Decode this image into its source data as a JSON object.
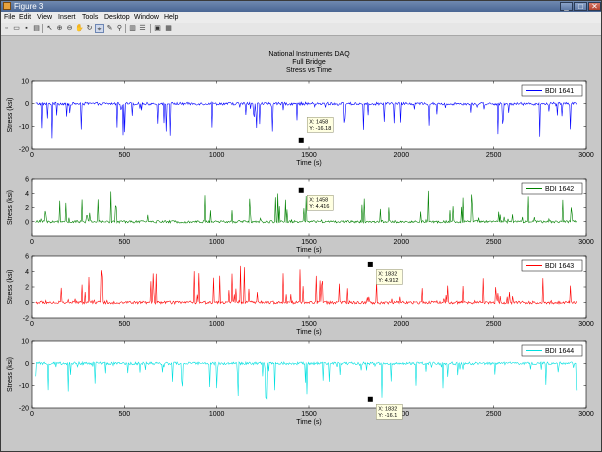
{
  "window": {
    "title": "Figure 3",
    "controls": {
      "minimize": "_",
      "maximize": "□",
      "close": "✕"
    }
  },
  "menu": [
    "File",
    "Edit",
    "View",
    "Insert",
    "Tools",
    "Desktop",
    "Window",
    "Help"
  ],
  "toolbar": {
    "icons": [
      "new-figure-icon",
      "open-file-icon",
      "save-icon",
      "print-icon",
      "select-arrow-icon",
      "zoom-in-icon",
      "zoom-out-icon",
      "pan-icon",
      "rotate-icon",
      "data-cursor-icon",
      "brush-icon",
      "link-icon",
      "colorbar-icon",
      "legend-icon",
      "hide-plot-tools-icon",
      "show-plot-tools-icon"
    ]
  },
  "figure": {
    "title_lines": [
      "National Instruments DAQ",
      "Full Bridge",
      "Stress vs Time"
    ]
  },
  "chart_data": [
    {
      "type": "line",
      "series": [
        {
          "name": "BDI 1641",
          "color": "#0000ff",
          "baseline": 0,
          "direction": "negative",
          "spike_max": 16
        }
      ],
      "xlabel": "Time (s)",
      "ylabel": "Stress (ksi)",
      "xlim": [
        0,
        3000
      ],
      "ylim": [
        -20,
        10
      ],
      "xticks": [
        0,
        500,
        1000,
        1500,
        2000,
        2500,
        3000
      ],
      "yticks": [
        -20,
        -10,
        0,
        10
      ],
      "legend_position": "top-right",
      "datatip": {
        "x": 1458,
        "y": -16.18,
        "label_x": "X: 1458",
        "label_y": "Y: -16.18"
      }
    },
    {
      "type": "line",
      "series": [
        {
          "name": "BDI 1642",
          "color": "#008000",
          "baseline": 0,
          "direction": "positive",
          "spike_max": 4.4
        }
      ],
      "xlabel": "Time (s)",
      "ylabel": "Stress (ksi)",
      "xlim": [
        0,
        3000
      ],
      "ylim": [
        -2,
        6
      ],
      "xticks": [
        0,
        500,
        1000,
        1500,
        2000,
        2500,
        3000
      ],
      "yticks": [
        0,
        2,
        4,
        6
      ],
      "legend_position": "top-right",
      "datatip": {
        "x": 1458,
        "y": 4.416,
        "label_x": "X: 1458",
        "label_y": "Y: 4.416"
      }
    },
    {
      "type": "line",
      "series": [
        {
          "name": "BDI 1643",
          "color": "#ff0000",
          "baseline": 0,
          "direction": "positive",
          "spike_max": 4.9
        }
      ],
      "xlabel": "Time (s)",
      "ylabel": "Stress (ksi)",
      "xlim": [
        0,
        3000
      ],
      "ylim": [
        -2,
        6
      ],
      "xticks": [
        0,
        500,
        1000,
        1500,
        2000,
        2500,
        3000
      ],
      "yticks": [
        -2,
        0,
        2,
        4,
        6
      ],
      "legend_position": "top-right",
      "datatip": {
        "x": 1832,
        "y": 4.912,
        "label_x": "X: 1832",
        "label_y": "Y: 4.912"
      }
    },
    {
      "type": "line",
      "series": [
        {
          "name": "BDI 1644",
          "color": "#00e0e0",
          "baseline": 0,
          "direction": "negative",
          "spike_max": 16.1
        }
      ],
      "xlabel": "Time (s)",
      "ylabel": "Stress (ksi)",
      "xlim": [
        0,
        3000
      ],
      "ylim": [
        -20,
        10
      ],
      "xticks": [
        0,
        500,
        1000,
        1500,
        2000,
        2500,
        3000
      ],
      "yticks": [
        -20,
        -10,
        0,
        10
      ],
      "legend_position": "top-right",
      "datatip": {
        "x": 1832,
        "y": -16.1,
        "label_x": "X: 1832",
        "label_y": "Y: -16.1"
      }
    }
  ]
}
